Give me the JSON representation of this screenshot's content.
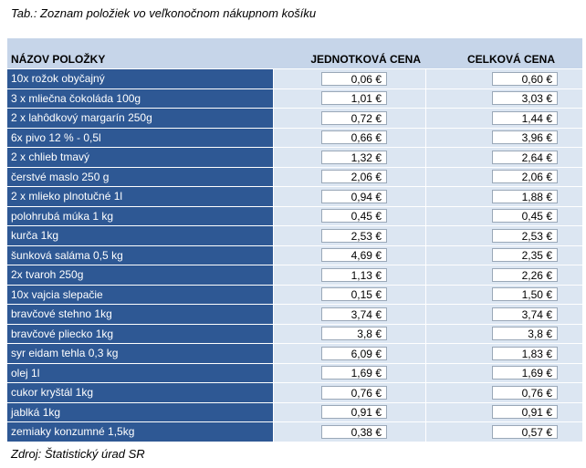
{
  "caption": "Tab.: Zoznam položiek vo veľkonočnom nákupnom košíku",
  "headers": {
    "name": "NÁZOV POLOŽKY",
    "unit": "JEDNOTKOVÁ CENA",
    "total": "CELKOVÁ CENA"
  },
  "rows": [
    {
      "name": "10x rožok obyčajný",
      "unit": "0,06 €",
      "total": "0,60 €"
    },
    {
      "name": "3 x mliečna čokoláda 100g",
      "unit": "1,01 €",
      "total": "3,03 €"
    },
    {
      "name": "2 x lahôdkový margarín 250g",
      "unit": "0,72 €",
      "total": "1,44 €"
    },
    {
      "name": "6x pivo 12 % - 0,5l",
      "unit": "0,66 €",
      "total": "3,96 €"
    },
    {
      "name": "2 x chlieb tmavý",
      "unit": "1,32 €",
      "total": "2,64 €"
    },
    {
      "name": "čerstvé maslo 250 g",
      "unit": "2,06 €",
      "total": "2,06 €"
    },
    {
      "name": "2 x mlieko plnotučné 1l",
      "unit": "0,94 €",
      "total": "1,88 €"
    },
    {
      "name": "polohrubá múka 1 kg",
      "unit": "0,45 €",
      "total": "0,45 €"
    },
    {
      "name": "kurča 1kg",
      "unit": "2,53 €",
      "total": "2,53 €"
    },
    {
      "name": "šunková saláma 0,5 kg",
      "unit": "4,69 €",
      "total": "2,35 €"
    },
    {
      "name": "2x tvaroh 250g",
      "unit": "1,13 €",
      "total": "2,26 €"
    },
    {
      "name": "10x vajcia slepačie",
      "unit": "0,15 €",
      "total": "1,50 €"
    },
    {
      "name": "bravčové stehno 1kg",
      "unit": "3,74 €",
      "total": "3,74 €"
    },
    {
      "name": "bravčové pliecko 1kg",
      "unit": "3,8 €",
      "total": "3,8 €"
    },
    {
      "name": "syr eidam tehla 0,3 kg",
      "unit": "6,09 €",
      "total": "1,83 €"
    },
    {
      "name": "olej 1l",
      "unit": "1,69 €",
      "total": "1,69 €"
    },
    {
      "name": "cukor kryštál 1kg",
      "unit": "0,76 €",
      "total": "0,76 €"
    },
    {
      "name": "jablká 1kg",
      "unit": "0,91 €",
      "total": "0,91 €"
    },
    {
      "name": "zemiaky konzumné 1,5kg",
      "unit": "0,38 €",
      "total": "0,57 €"
    }
  ],
  "source": "Zdroj: Štatistický úrad SR"
}
